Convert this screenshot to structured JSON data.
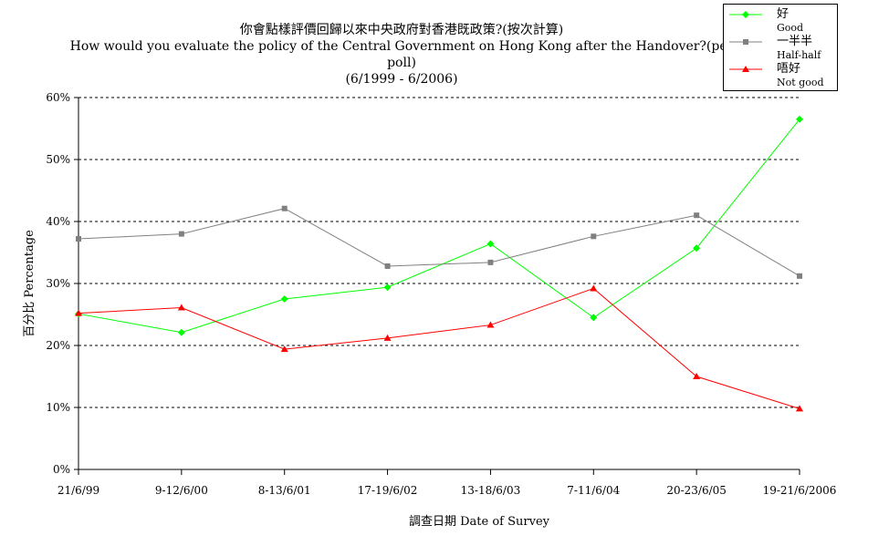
{
  "chart_data": {
    "type": "line",
    "title": "你會點樣評價回歸以來中央政府對香港既政策?(按次計算)",
    "subtitle": "How would you evaluate the policy of the Central Government on Hong Kong after the Handover?(per poll)",
    "period": "(6/1999 - 6/2006)",
    "xlabel": "調查日期 Date of Survey",
    "ylabel": "百分比 Percentage",
    "categories": [
      "21/6/99",
      "9-12/6/00",
      "8-13/6/01",
      "17-19/6/02",
      "13-18/6/03",
      "7-11/6/04",
      "20-23/6/05",
      "19-21/6/2006"
    ],
    "ylim": [
      0,
      60
    ],
    "yticks": [
      0,
      10,
      20,
      30,
      40,
      50,
      60
    ],
    "ytick_labels": [
      "0%",
      "10%",
      "20%",
      "30%",
      "40%",
      "50%",
      "60%"
    ],
    "grid": true,
    "legend_position": "top-right",
    "series": [
      {
        "name": "好",
        "name_en": "Good",
        "color": "#00ff00",
        "marker": "diamond",
        "values": [
          25.1,
          22.1,
          27.5,
          29.4,
          36.4,
          24.5,
          35.7,
          56.5
        ]
      },
      {
        "name": "一半半",
        "name_en": "Half-half",
        "color": "#808080",
        "marker": "square",
        "values": [
          37.2,
          38.0,
          42.1,
          32.8,
          33.4,
          37.6,
          41.0,
          31.2
        ]
      },
      {
        "name": "唔好",
        "name_en": "Not good",
        "color": "#ff0000",
        "marker": "triangle",
        "values": [
          25.2,
          26.1,
          19.4,
          21.2,
          23.3,
          29.2,
          15.0,
          9.8
        ]
      }
    ]
  }
}
